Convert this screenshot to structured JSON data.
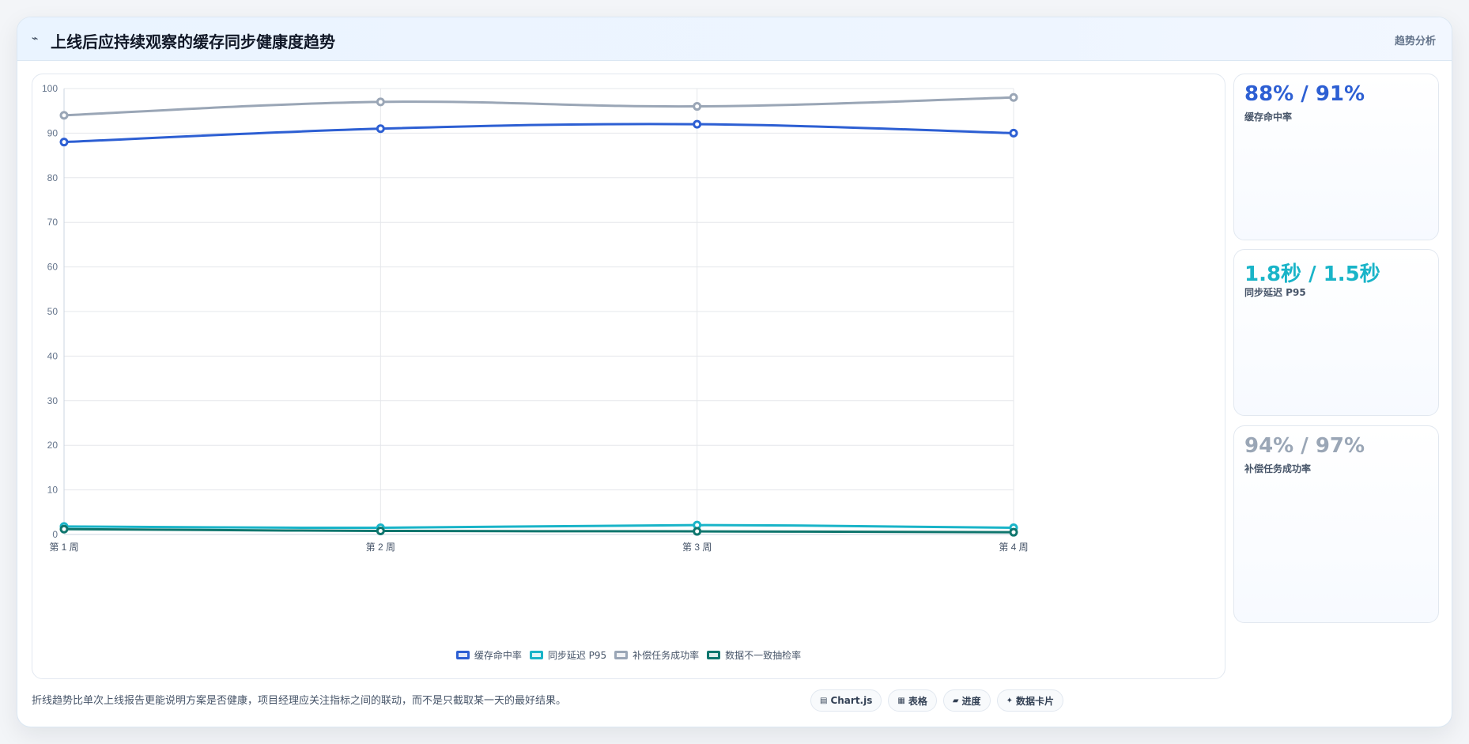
{
  "header": {
    "icon": "line-chart-icon",
    "title": "上线后应持续观察的缓存同步健康度趋势",
    "tag": "趋势分析"
  },
  "chart_data": {
    "type": "line",
    "categories": [
      "第 1 周",
      "第 2 周",
      "第 3 周",
      "第 4 周"
    ],
    "ylim": [
      0,
      100
    ],
    "yticks": [
      0,
      10,
      20,
      30,
      40,
      50,
      60,
      70,
      80,
      90,
      100
    ],
    "grid": true,
    "legend_position": "bottom-center",
    "title": "",
    "xlabel": "",
    "ylabel": "",
    "series": [
      {
        "name": "缓存命中率",
        "values": [
          88,
          91,
          92,
          90
        ],
        "color": "#2d5fd3"
      },
      {
        "name": "同步延迟 P95",
        "values": [
          1.8,
          1.5,
          2.1,
          1.5
        ],
        "color": "#19b4c8"
      },
      {
        "name": "补偿任务成功率",
        "values": [
          94,
          97,
          96,
          98
        ],
        "color": "#9aa6b6"
      },
      {
        "name": "数据不一致抽检率",
        "values": [
          1.2,
          0.8,
          0.7,
          0.5
        ],
        "color": "#0f766e"
      }
    ]
  },
  "metrics": [
    {
      "value": "88% / 91%",
      "label": "缓存命中率",
      "color": "#2d5fd3"
    },
    {
      "value": "1.8秒 / 1.5秒",
      "label": "同步延迟 P95",
      "color": "#19b4c8"
    },
    {
      "value": "94% / 97%",
      "label": "补偿任务成功率",
      "color": "#9aa6b6"
    }
  ],
  "footer": {
    "note": "折线趋势比单次上线报告更能说明方案是否健康，项目经理应关注指标之间的联动，而不是只截取某一天的最好结果。",
    "chips": [
      {
        "label": "Chart.js",
        "icon": "▤",
        "icon_name": "chart-icon"
      },
      {
        "label": "表格",
        "icon": "▦",
        "icon_name": "table-icon"
      },
      {
        "label": "进度",
        "icon": "▰",
        "icon_name": "progress-icon"
      },
      {
        "label": "数据卡片",
        "icon": "✦",
        "icon_name": "card-icon"
      }
    ]
  }
}
